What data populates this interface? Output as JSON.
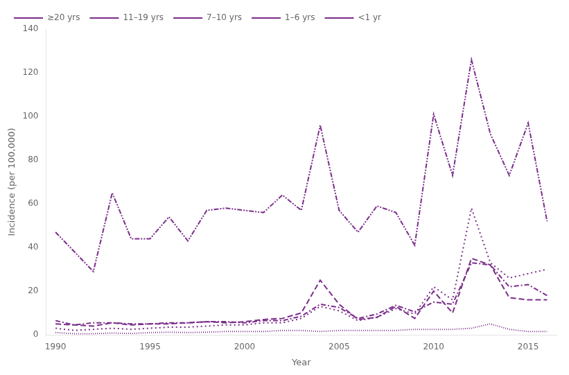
{
  "chart_data": {
    "type": "line",
    "xlabel": "Year",
    "ylabel": "Incidence (per 100,000)",
    "x": [
      1990,
      1991,
      1992,
      1993,
      1994,
      1995,
      1996,
      1997,
      1998,
      1999,
      2000,
      2001,
      2002,
      2003,
      2004,
      2005,
      2006,
      2007,
      2008,
      2009,
      2010,
      2011,
      2012,
      2013,
      2014,
      2015,
      2016
    ],
    "series": [
      {
        "name": "≥20 yrs",
        "color": "#7B2D8B",
        "line_style": "densely_dotted",
        "values": [
          1.0,
          0.5,
          0.5,
          0.8,
          0.6,
          1.0,
          1.2,
          1.0,
          1.2,
          1.5,
          1.5,
          1.5,
          2.0,
          2.0,
          1.5,
          2.0,
          2.0,
          2.0,
          2.0,
          2.5,
          2.5,
          2.5,
          3.0,
          5.0,
          2.5,
          1.5,
          1.5
        ]
      },
      {
        "name": "11–19 yrs",
        "color": "#7B2D8B",
        "line_style": "dashed",
        "values": [
          5.0,
          4.5,
          4.0,
          5.5,
          4.5,
          5.0,
          5.0,
          5.5,
          6.0,
          5.5,
          6.0,
          7.0,
          7.5,
          10.0,
          25.0,
          14.0,
          7.0,
          8.0,
          13.0,
          7.5,
          20.0,
          10.0,
          35.0,
          32.0,
          17.0,
          16.0,
          16.0
        ]
      },
      {
        "name": "7–10 yrs",
        "color": "#7B2D8B",
        "line_style": "dotted",
        "values": [
          3.0,
          2.0,
          2.5,
          3.0,
          2.5,
          3.0,
          3.5,
          3.5,
          4.0,
          4.5,
          4.5,
          5.5,
          5.5,
          7.5,
          13.0,
          11.0,
          6.5,
          8.0,
          12.0,
          9.5,
          22.0,
          16.0,
          58.0,
          33.0,
          26.0,
          28.0,
          30.0
        ]
      },
      {
        "name": "1–6 yrs",
        "color": "#7B2D8B",
        "line_style": "dashdot",
        "values": [
          6.5,
          4.5,
          5.5,
          5.5,
          5.0,
          5.0,
          5.5,
          5.5,
          6.0,
          6.0,
          5.5,
          6.5,
          6.5,
          8.5,
          14.0,
          12.5,
          7.5,
          9.5,
          13.5,
          10.5,
          15.0,
          14.0,
          33.0,
          32.0,
          22.0,
          23.0,
          18.0
        ]
      },
      {
        "name": "<1 yr",
        "color": "#7B2D8B",
        "line_style": "dashdotdot",
        "values": [
          47.0,
          38.0,
          29.0,
          65.0,
          44.0,
          44.0,
          54.0,
          43.0,
          57.0,
          58.0,
          57.0,
          56.0,
          64.0,
          57.0,
          96.0,
          57.0,
          47.0,
          59.0,
          56.0,
          41.0,
          101.0,
          73.0,
          126.0,
          92.0,
          73.0,
          97.0,
          52.0
        ]
      }
    ],
    "xlim": [
      1989.5,
      2016.5
    ],
    "xticks": [
      1990,
      1995,
      2000,
      2005,
      2010,
      2015
    ],
    "ylim": [
      0,
      140
    ],
    "yticks": [
      0,
      20,
      40,
      60,
      80,
      100,
      120,
      140
    ],
    "grid": false,
    "legend": "upper left"
  }
}
